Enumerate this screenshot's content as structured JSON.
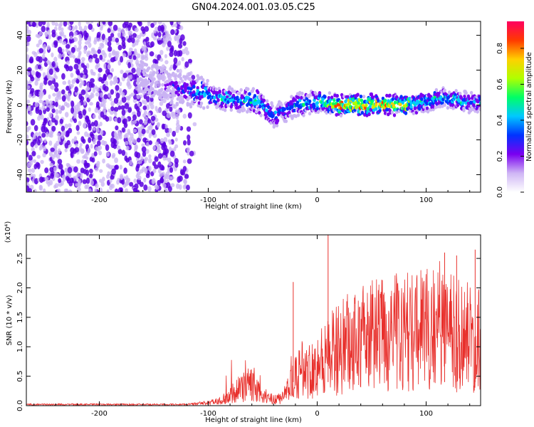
{
  "title": "GN04.2024.001.03.05.C25",
  "colors": {
    "snr_line": "#e8302c",
    "axis": "#000000",
    "scatter_dense": "#5a00e0",
    "scatter_light": "#c9b3f3",
    "colormap": [
      "#ffffff",
      "#cfb6f5",
      "#7a00f0",
      "#0033ff",
      "#00c8ff",
      "#00ff66",
      "#b0ff00",
      "#ffd000",
      "#ff3a00",
      "#ff0060"
    ]
  },
  "chart_data": [
    {
      "type": "heatmap",
      "xlabel": "Height of straight line (km)",
      "ylabel": "Frequency (Hz)",
      "xlim": [
        -267,
        150
      ],
      "ylim": [
        -50,
        48
      ],
      "xticks": [
        -200,
        -100,
        0,
        100
      ],
      "yticks": [
        -40,
        -20,
        0,
        20,
        40
      ],
      "colorbar": {
        "label": "Normalized spectral amplitude",
        "range": [
          0,
          0.95
        ],
        "ticks": [
          0.0,
          0.2,
          0.4,
          0.6,
          0.8
        ]
      },
      "ridge": {
        "x": [
          -160,
          -130,
          -110,
          -90,
          -70,
          -55,
          -40,
          -20,
          0,
          20,
          40,
          60,
          80,
          100,
          120,
          145
        ],
        "freq": [
          16,
          10,
          8,
          4,
          3,
          2,
          -6,
          0,
          2,
          0,
          0,
          0,
          0,
          2,
          4,
          1
        ],
        "peak_amplitude": [
          0.05,
          0.3,
          0.45,
          0.5,
          0.45,
          0.55,
          0.4,
          0.45,
          0.6,
          0.85,
          0.9,
          0.9,
          0.8,
          0.5,
          0.55,
          0.4
        ]
      },
      "noise_region": {
        "x": [
          -267,
          -110
        ],
        "freq": [
          -50,
          48
        ],
        "amplitude": 0.1
      }
    },
    {
      "type": "line",
      "xlabel": "Height of straight line (km)",
      "ylabel": "SNR (10 * v/v)",
      "scale_label": "(x10⁴)",
      "xlim": [
        -267,
        150
      ],
      "ylim": [
        0,
        2.9
      ],
      "xticks": [
        -200,
        -100,
        0,
        100
      ],
      "yticks": [
        "0.0",
        "0.5",
        "1.0",
        "1.5",
        "2.0",
        "2.5"
      ],
      "envelope": {
        "x": [
          -267,
          -120,
          -100,
          -85,
          -75,
          -62,
          -50,
          -40,
          -32,
          -25,
          -20,
          -15,
          -10,
          0,
          10,
          20,
          30,
          50,
          70,
          90,
          110,
          130,
          150
        ],
        "y": [
          0.02,
          0.02,
          0.05,
          0.12,
          0.3,
          0.45,
          0.22,
          0.12,
          0.18,
          0.4,
          0.55,
          0.75,
          0.7,
          0.85,
          1.05,
          1.15,
          1.3,
          1.45,
          1.5,
          1.55,
          1.6,
          1.5,
          1.3
        ]
      },
      "spikes": [
        {
          "x": 10,
          "y": 2.9
        },
        {
          "x": 145,
          "y": 2.65
        },
        {
          "x": 117,
          "y": 2.6
        },
        {
          "x": 128,
          "y": 2.55
        },
        {
          "x": -22,
          "y": 2.1
        }
      ]
    }
  ]
}
